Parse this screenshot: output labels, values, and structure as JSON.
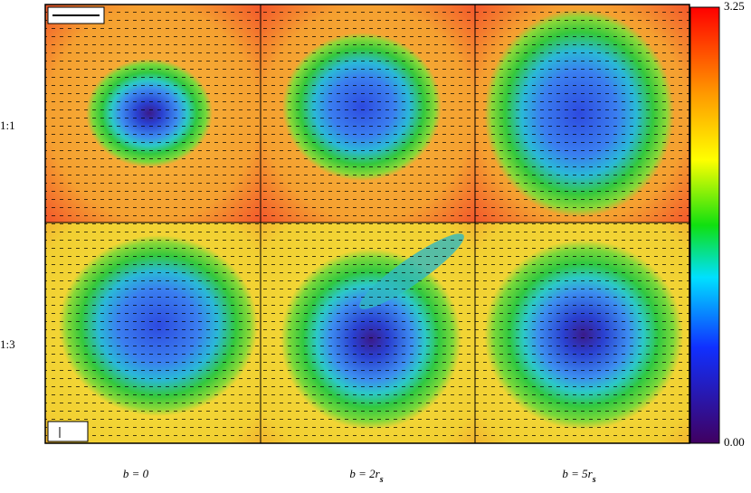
{
  "rows": [
    {
      "label": "1:1"
    },
    {
      "label": "1:3"
    }
  ],
  "columns": [
    {
      "main": "b = 0",
      "sub": null
    },
    {
      "main": "b = 2r",
      "sub": "s"
    },
    {
      "main": "b = 5r",
      "sub": "s"
    }
  ],
  "colorbar": {
    "max_label": "3.25",
    "min_label": "0.00"
  }
}
